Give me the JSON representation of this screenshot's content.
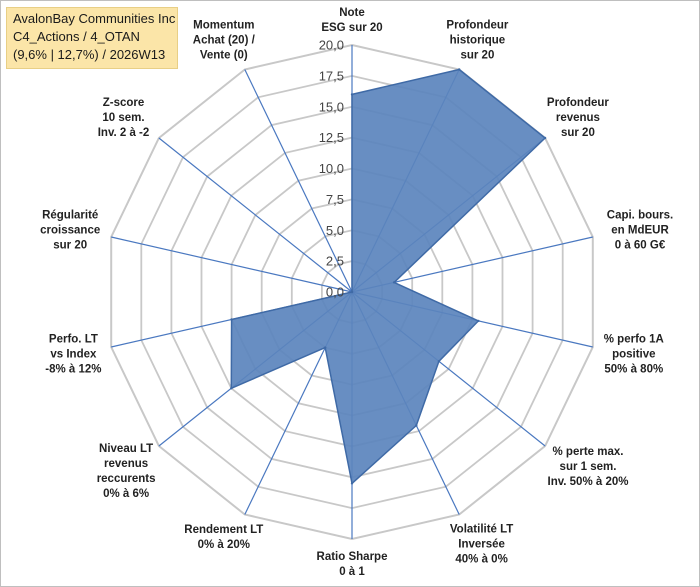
{
  "header": {
    "line1": "AvalonBay Communities Inc",
    "line2": "C4_Actions / 4_OTAN",
    "line3": "(9,6% | 12,7%) / 2026W13"
  },
  "colors": {
    "fill": "#5b84bd",
    "stroke": "#3f6aa6",
    "grid": "#c8c8c8",
    "spoke": "#4a78c0",
    "title_bg": "#fbe5a8"
  },
  "chart_data": {
    "type": "radar",
    "scale_min": 0,
    "scale_max": 20,
    "ticks": [
      "0,0",
      "2,5",
      "5,0",
      "7,5",
      "10,0",
      "12,5",
      "15,0",
      "17,5",
      "20,0"
    ],
    "axes": [
      {
        "label": [
          "Note",
          "ESG sur 20"
        ],
        "value": 16
      },
      {
        "label": [
          "Profondeur",
          "historique",
          "sur 20"
        ],
        "value": 20
      },
      {
        "label": [
          "Profondeur",
          "revenus",
          "sur 20"
        ],
        "value": 20
      },
      {
        "label": [
          "Capi. bours.",
          "en MdEUR",
          "0 à 60 G€"
        ],
        "value": 3.5
      },
      {
        "label": [
          "% perfo 1A",
          "positive",
          "50% à 80%"
        ],
        "value": 10.5
      },
      {
        "label": [
          "% perte max.",
          "sur 1 sem.",
          "Inv. 50% à 20%"
        ],
        "value": 9
      },
      {
        "label": [
          "Volatilité LT",
          "Inversée",
          "40% à 0%"
        ],
        "value": 12
      },
      {
        "label": [
          "Ratio Sharpe",
          "0 à 1"
        ],
        "value": 15.5
      },
      {
        "label": [
          "Rendement LT",
          "0% à 20%"
        ],
        "value": 5
      },
      {
        "label": [
          "Niveau LT",
          "revenus",
          "reccurents",
          "0% à 6%"
        ],
        "value": 12.5
      },
      {
        "label": [
          "Perfo. LT",
          "vs Index",
          "-8% à 12%"
        ],
        "value": 10
      },
      {
        "label": [
          "Régularité",
          "croissance",
          "sur 20"
        ],
        "value": 0
      },
      {
        "label": [
          "Z-score",
          "10 sem.",
          "Inv. 2 à -2"
        ],
        "value": 0
      },
      {
        "label": [
          "Momentum",
          "Achat (20) /",
          "Vente (0)"
        ],
        "value": 0
      }
    ]
  }
}
